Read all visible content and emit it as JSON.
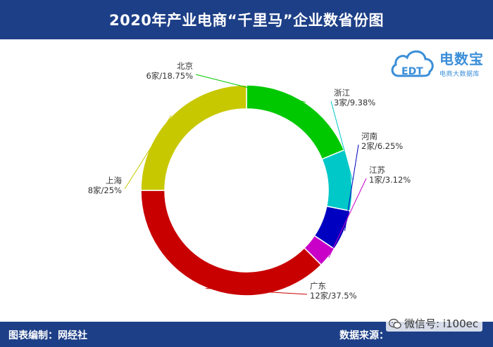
{
  "title": "2020年产业电商“千里马”企业数省份图",
  "footer": {
    "left": "图表编制：网经社",
    "right": "数据来源：",
    "watermark": "微信号: i100ec"
  },
  "logo": {
    "badge": "EDT",
    "name": "电数宝",
    "tagline": "电商大数据库"
  },
  "colors": {
    "title_bar": "#1d3f87",
    "footer_bar": "#1d3f87",
    "logo": "#3a8ed8"
  },
  "icons": [
    "wechat-icon",
    "cloud-logo-icon"
  ],
  "chart_data": {
    "type": "pie",
    "donut": true,
    "unit": "家",
    "slices": [
      {
        "name": "北京",
        "value": 6,
        "label": "6家/18.75%",
        "color": "#00c800"
      },
      {
        "name": "浙江",
        "value": 3,
        "label": "3家/9.38%",
        "color": "#00c8c8"
      },
      {
        "name": "河南",
        "value": 2,
        "label": "2家/6.25%",
        "color": "#0000c0"
      },
      {
        "name": "江苏",
        "value": 1,
        "label": "1家/3.12%",
        "color": "#c800c8"
      },
      {
        "name": "广东",
        "value": 12,
        "label": "12家/37.5%",
        "color": "#c80000"
      },
      {
        "name": "上海",
        "value": 8,
        "label": "8家/25%",
        "color": "#c8c800"
      }
    ]
  }
}
